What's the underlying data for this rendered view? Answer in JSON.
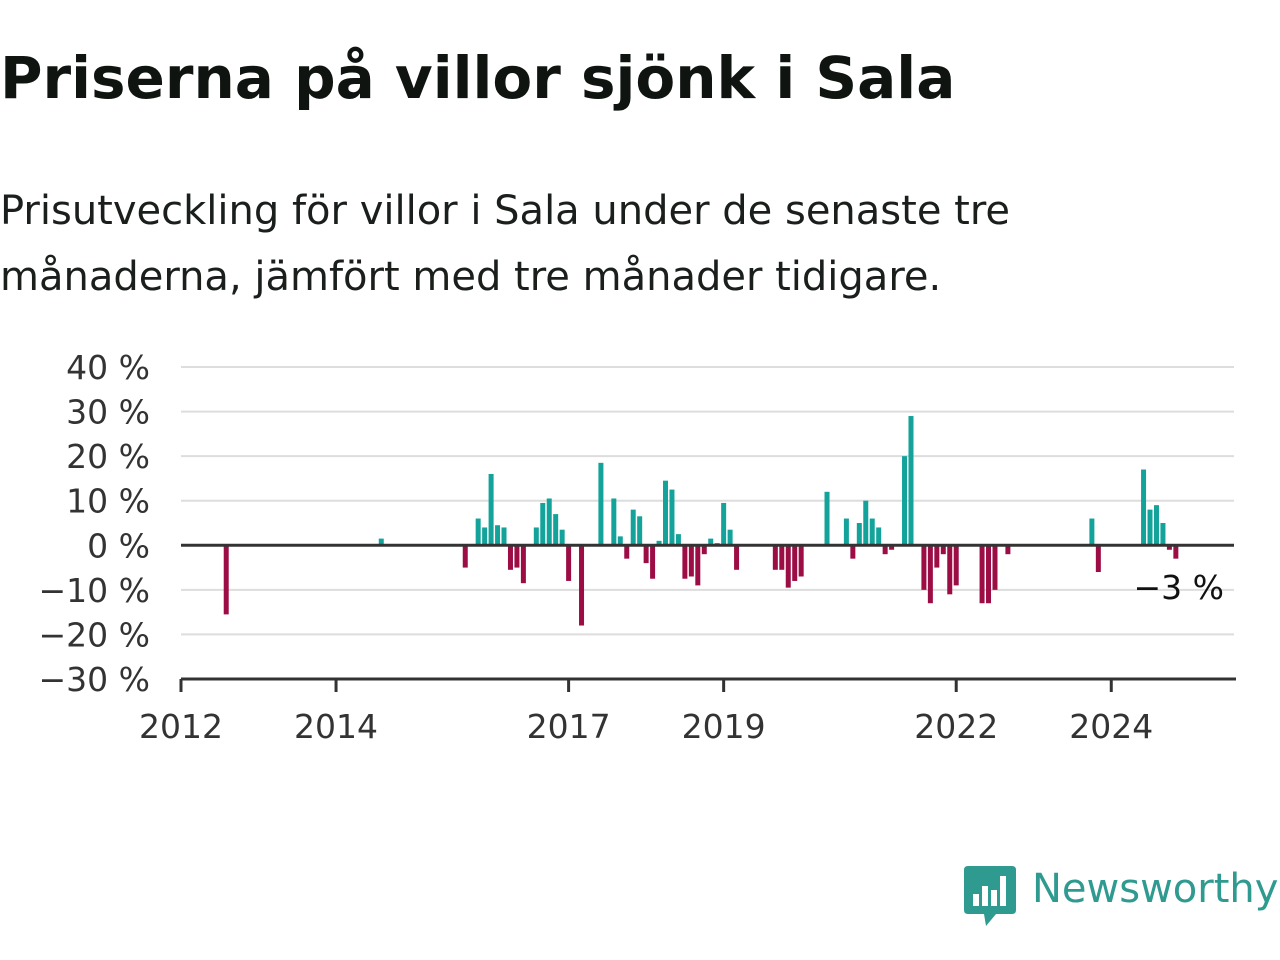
{
  "header": {
    "title": "Priserna på villor sjönk i Sala",
    "subtitle": "Prisutveckling för villor i Sala under de senaste tre månaderna, jämfört med tre månader tidigare."
  },
  "brand": {
    "name": "Newsworthy",
    "logo_icon": "bar-chart-speech-bubble-icon"
  },
  "colors": {
    "positive": "#13a39b",
    "negative": "#9c0d45",
    "gridline": "#dddddd",
    "axis": "#333333",
    "brand": "#2f9a90"
  },
  "chart_data": {
    "type": "bar",
    "title": "Priserna på villor sjönk i Sala",
    "subtitle": "Prisutveckling för villor i Sala under de senaste tre månaderna, jämfört med tre månader tidigare.",
    "xlabel": "",
    "ylabel": "",
    "grid": true,
    "legend": "none",
    "x_domain": [
      "2012-01",
      "2025-08"
    ],
    "ylim": [
      -30,
      40
    ],
    "y_ticks": [
      -30,
      -20,
      -10,
      0,
      10,
      20,
      30,
      40
    ],
    "y_tick_labels": [
      "−30 %",
      "−20 %",
      "−10 %",
      "0 %",
      "10 %",
      "20 %",
      "30 %",
      "40 %"
    ],
    "x_ticks": [
      "2012-01",
      "2014-01",
      "2017-01",
      "2019-01",
      "2022-01",
      "2024-01"
    ],
    "x_tick_labels": [
      "2012",
      "2014",
      "2017",
      "2019",
      "2022",
      "2024"
    ],
    "last_value_label": "−3 %",
    "series": [
      {
        "values": [
          {
            "x": "2012-08",
            "y": -15.5
          },
          {
            "x": "2014-08",
            "y": 1.5
          },
          {
            "x": "2015-09",
            "y": -5
          },
          {
            "x": "2015-11",
            "y": 6
          },
          {
            "x": "2015-12",
            "y": 4
          },
          {
            "x": "2016-01",
            "y": 16
          },
          {
            "x": "2016-02",
            "y": 4.5
          },
          {
            "x": "2016-03",
            "y": 4
          },
          {
            "x": "2016-04",
            "y": -5.5
          },
          {
            "x": "2016-05",
            "y": -5
          },
          {
            "x": "2016-06",
            "y": -8.5
          },
          {
            "x": "2016-08",
            "y": 4
          },
          {
            "x": "2016-09",
            "y": 9.5
          },
          {
            "x": "2016-10",
            "y": 10.5
          },
          {
            "x": "2016-11",
            "y": 7
          },
          {
            "x": "2016-12",
            "y": 3.5
          },
          {
            "x": "2017-01",
            "y": -8
          },
          {
            "x": "2017-03",
            "y": -18
          },
          {
            "x": "2017-06",
            "y": 18.5
          },
          {
            "x": "2017-08",
            "y": 10.5
          },
          {
            "x": "2017-09",
            "y": 2
          },
          {
            "x": "2017-10",
            "y": -3
          },
          {
            "x": "2017-11",
            "y": 8
          },
          {
            "x": "2017-12",
            "y": 6.5
          },
          {
            "x": "2018-01",
            "y": -4
          },
          {
            "x": "2018-02",
            "y": -7.5
          },
          {
            "x": "2018-03",
            "y": 1
          },
          {
            "x": "2018-04",
            "y": 14.5
          },
          {
            "x": "2018-05",
            "y": 12.5
          },
          {
            "x": "2018-06",
            "y": 2.5
          },
          {
            "x": "2018-07",
            "y": -7.5
          },
          {
            "x": "2018-08",
            "y": -7
          },
          {
            "x": "2018-09",
            "y": -9
          },
          {
            "x": "2018-10",
            "y": -2
          },
          {
            "x": "2018-11",
            "y": 1.5
          },
          {
            "x": "2018-12",
            "y": 0.5
          },
          {
            "x": "2019-01",
            "y": 9.5
          },
          {
            "x": "2019-02",
            "y": 3.5
          },
          {
            "x": "2019-03",
            "y": -5.5
          },
          {
            "x": "2019-09",
            "y": -5.5
          },
          {
            "x": "2019-10",
            "y": -5.5
          },
          {
            "x": "2019-11",
            "y": -9.5
          },
          {
            "x": "2019-12",
            "y": -8
          },
          {
            "x": "2020-01",
            "y": -7
          },
          {
            "x": "2020-05",
            "y": 12
          },
          {
            "x": "2020-08",
            "y": 6
          },
          {
            "x": "2020-09",
            "y": -3
          },
          {
            "x": "2020-10",
            "y": 5
          },
          {
            "x": "2020-11",
            "y": 10
          },
          {
            "x": "2020-12",
            "y": 6
          },
          {
            "x": "2021-01",
            "y": 4
          },
          {
            "x": "2021-02",
            "y": -2
          },
          {
            "x": "2021-03",
            "y": -1
          },
          {
            "x": "2021-05",
            "y": 20
          },
          {
            "x": "2021-06",
            "y": 29
          },
          {
            "x": "2021-08",
            "y": -10
          },
          {
            "x": "2021-09",
            "y": -13
          },
          {
            "x": "2021-10",
            "y": -5
          },
          {
            "x": "2021-11",
            "y": -2
          },
          {
            "x": "2021-12",
            "y": -11
          },
          {
            "x": "2022-01",
            "y": -9
          },
          {
            "x": "2022-05",
            "y": -13
          },
          {
            "x": "2022-06",
            "y": -13
          },
          {
            "x": "2022-07",
            "y": -10
          },
          {
            "x": "2022-09",
            "y": -2
          },
          {
            "x": "2023-10",
            "y": 6
          },
          {
            "x": "2023-11",
            "y": -6
          },
          {
            "x": "2024-06",
            "y": 17
          },
          {
            "x": "2024-07",
            "y": 8
          },
          {
            "x": "2024-08",
            "y": 9
          },
          {
            "x": "2024-09",
            "y": 5
          },
          {
            "x": "2024-10",
            "y": -1
          },
          {
            "x": "2024-11",
            "y": -3
          }
        ]
      }
    ]
  }
}
